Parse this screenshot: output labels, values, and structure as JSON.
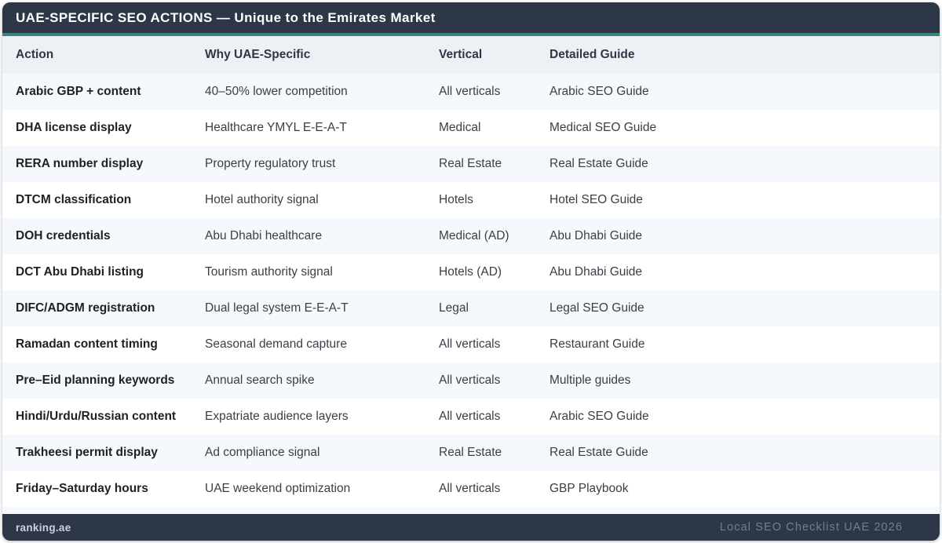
{
  "header": {
    "title": "UAE-SPECIFIC SEO ACTIONS — Unique to the Emirates Market"
  },
  "colors": {
    "header_navy": "#2d3748",
    "accent_teal": "#3b847e",
    "column_header_bg": "#edf1f6",
    "row_odd_bg": "#f5f8fc",
    "row_even_bg": "#ffffff",
    "footer_bg": "#2d3748"
  },
  "table": {
    "columns": [
      "Action",
      "Why UAE-Specific",
      "Vertical",
      "Detailed Guide"
    ],
    "rows": [
      [
        "Arabic GBP + content",
        "40–50% lower competition",
        "All verticals",
        "Arabic SEO Guide"
      ],
      [
        "DHA license display",
        "Healthcare YMYL E-E-A-T",
        "Medical",
        "Medical SEO Guide"
      ],
      [
        "RERA number display",
        "Property regulatory trust",
        "Real Estate",
        "Real Estate Guide"
      ],
      [
        "DTCM classification",
        "Hotel authority signal",
        "Hotels",
        "Hotel SEO Guide"
      ],
      [
        "DOH credentials",
        "Abu Dhabi healthcare",
        "Medical (AD)",
        "Abu Dhabi Guide"
      ],
      [
        "DCT Abu Dhabi listing",
        "Tourism authority signal",
        "Hotels (AD)",
        "Abu Dhabi Guide"
      ],
      [
        "DIFC/ADGM registration",
        "Dual legal system E-E-A-T",
        "Legal",
        "Legal SEO Guide"
      ],
      [
        "Ramadan content timing",
        "Seasonal demand capture",
        "All verticals",
        "Restaurant Guide"
      ],
      [
        "Pre–Eid planning keywords",
        "Annual search spike",
        "All verticals",
        "Multiple guides"
      ],
      [
        "Hindi/Urdu/Russian content",
        "Expatriate audience layers",
        "All verticals",
        "Arabic SEO Guide"
      ],
      [
        "Trakheesi permit display",
        "Ad compliance signal",
        "Real Estate",
        "Real Estate Guide"
      ],
      [
        "Friday–Saturday hours",
        "UAE weekend optimization",
        "All verticals",
        "GBP Playbook"
      ]
    ]
  },
  "footer": {
    "left": "ranking.ae",
    "right": "Local SEO Checklist UAE 2026"
  }
}
